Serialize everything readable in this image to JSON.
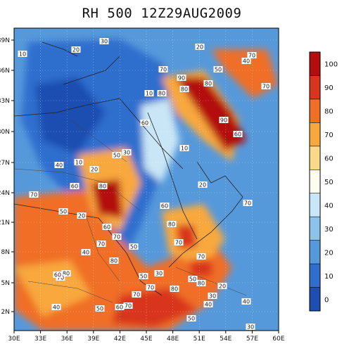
{
  "title": "RH 500 12Z29AUG2009",
  "map": {
    "x_ticks": [
      "30E",
      "33E",
      "36E",
      "39E",
      "42E",
      "45E",
      "48E",
      "51E",
      "54E",
      "57E",
      "60E"
    ],
    "y_ticks": [
      "2N",
      "5N",
      "8N",
      "21N",
      "24N",
      "27N",
      "30N",
      "33N",
      "36N",
      "39N"
    ],
    "contour_labels": [
      "10",
      "30",
      "20",
      "20",
      "70",
      "40",
      "70",
      "90",
      "80",
      "10",
      "80",
      "80",
      "90",
      "60",
      "50",
      "70",
      "10",
      "60",
      "30",
      "50",
      "10",
      "40",
      "20",
      "60",
      "80",
      "70",
      "50",
      "20",
      "60",
      "70",
      "70",
      "50",
      "40",
      "80",
      "80",
      "70",
      "60",
      "70",
      "50",
      "30",
      "70",
      "70",
      "70",
      "60",
      "20",
      "80",
      "50",
      "80",
      "30",
      "40",
      "50",
      "40",
      "30",
      "20",
      "70",
      "80",
      "40",
      "70",
      "50",
      "60"
    ]
  },
  "colorbar": {
    "labels": [
      "100",
      "90",
      "80",
      "70",
      "60",
      "50",
      "40",
      "30",
      "20",
      "10",
      "0"
    ],
    "colors": [
      "#b40d0d",
      "#d8351e",
      "#f06e26",
      "#f8a83c",
      "#fbd98a",
      "#fffdf0",
      "#c9e6f6",
      "#8cc3ec",
      "#5699db",
      "#2f6ecd",
      "#1d4eb0"
    ]
  }
}
